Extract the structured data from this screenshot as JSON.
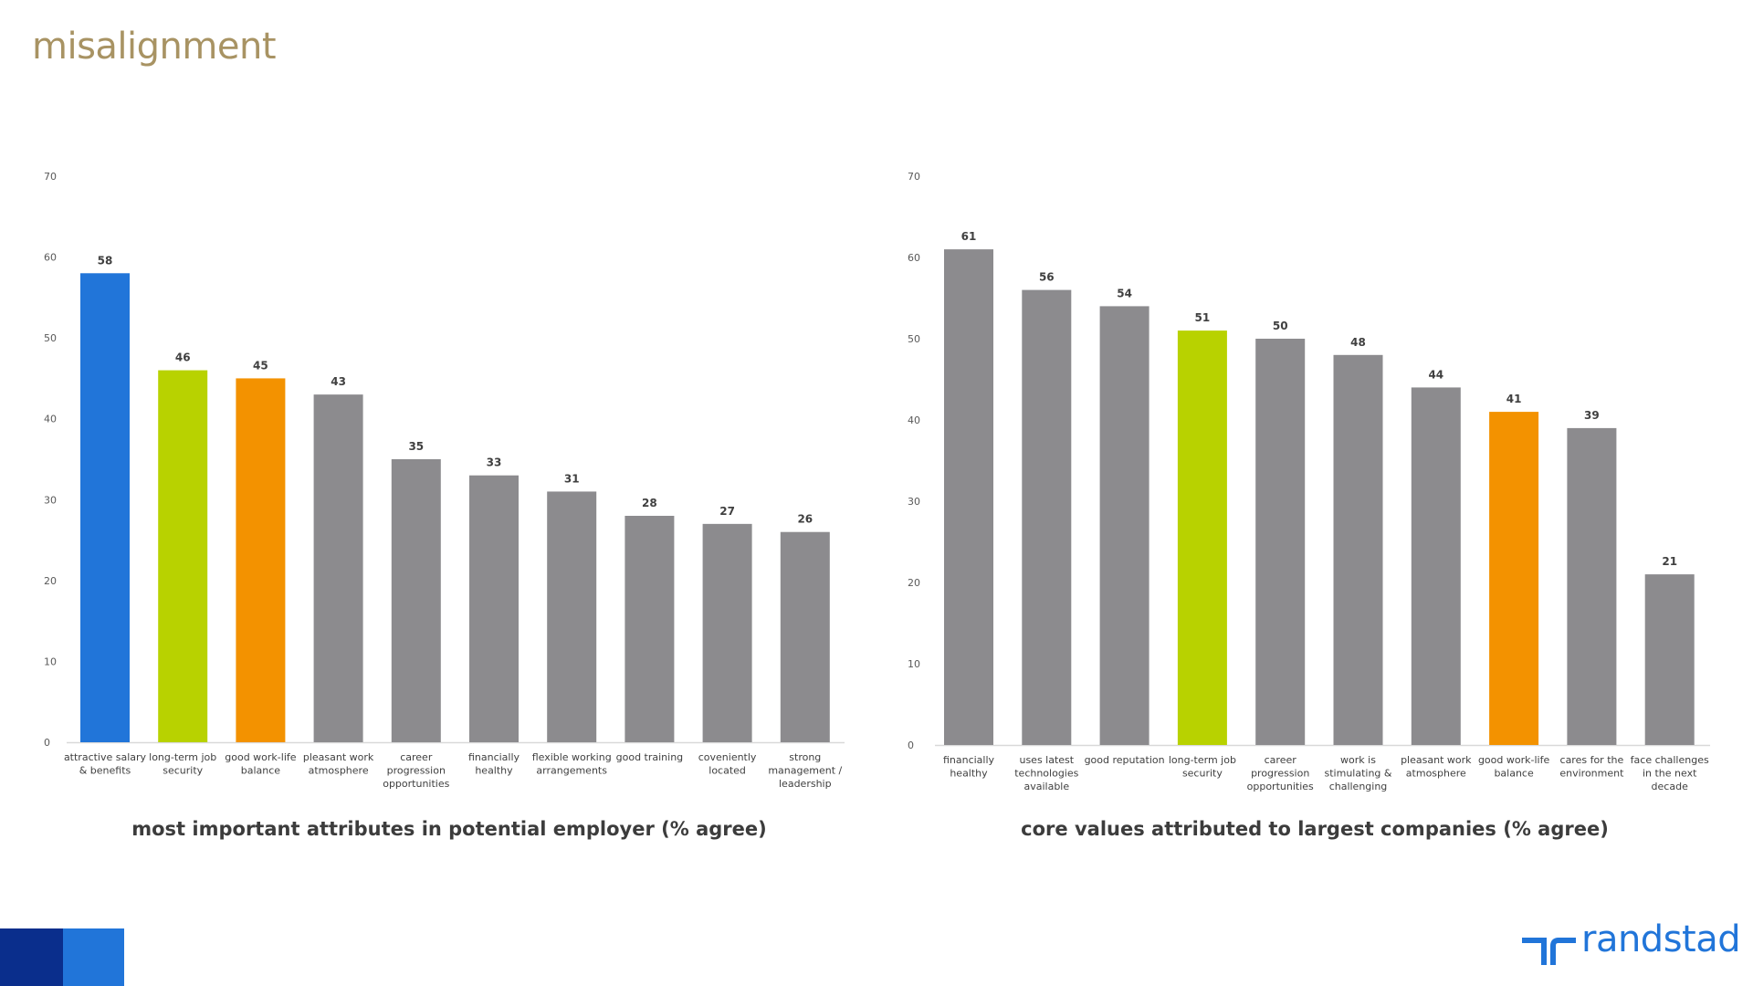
{
  "page": {
    "title": "misalignment"
  },
  "brand": {
    "name": "randstad",
    "color": "#2175d9"
  },
  "chart_data": [
    {
      "type": "bar",
      "title": "most important attributes in potential employer (% agree)",
      "ylim": [
        0,
        70
      ],
      "yticks": [
        0,
        10,
        20,
        30,
        40,
        50,
        60,
        70
      ],
      "grid": false,
      "categories": [
        [
          "attractive salary",
          "& benefits"
        ],
        [
          "long-term job",
          "security"
        ],
        [
          "good work-life",
          "balance"
        ],
        [
          "pleasant work",
          "atmosphere"
        ],
        [
          "career",
          "progression",
          "opportunities"
        ],
        [
          "financially",
          "healthy"
        ],
        [
          "flexible working",
          "arrangements"
        ],
        [
          "good training"
        ],
        [
          "coveniently",
          "located"
        ],
        [
          "strong",
          "management /",
          "leadership"
        ]
      ],
      "values": [
        58,
        46,
        45,
        43,
        35,
        33,
        31,
        28,
        27,
        26
      ],
      "colors": [
        "#2175d9",
        "#b8d200",
        "#f39200",
        "#8c8b8e",
        "#8c8b8e",
        "#8c8b8e",
        "#8c8b8e",
        "#8c8b8e",
        "#8c8b8e",
        "#8c8b8e"
      ]
    },
    {
      "type": "bar",
      "title": "core values attributed to largest companies (% agree)",
      "ylim": [
        0,
        70
      ],
      "yticks": [
        0,
        10,
        20,
        30,
        40,
        50,
        60,
        70
      ],
      "grid": false,
      "categories": [
        [
          "financially",
          "healthy"
        ],
        [
          "uses latest",
          "technologies",
          "available"
        ],
        [
          "good reputation"
        ],
        [
          "long-term job",
          "security"
        ],
        [
          "career",
          "progression",
          "opportunities"
        ],
        [
          "work is",
          "stimulating &",
          "challenging"
        ],
        [
          "pleasant work",
          "atmosphere"
        ],
        [
          "good work-life",
          "balance"
        ],
        [
          "cares for the",
          "environment"
        ],
        [
          "face challenges",
          "in the next",
          "decade"
        ]
      ],
      "values": [
        61,
        56,
        54,
        51,
        50,
        48,
        44,
        41,
        39,
        21
      ],
      "colors": [
        "#8c8b8e",
        "#8c8b8e",
        "#8c8b8e",
        "#b8d200",
        "#8c8b8e",
        "#8c8b8e",
        "#8c8b8e",
        "#f39200",
        "#8c8b8e",
        "#8c8b8e"
      ]
    }
  ]
}
